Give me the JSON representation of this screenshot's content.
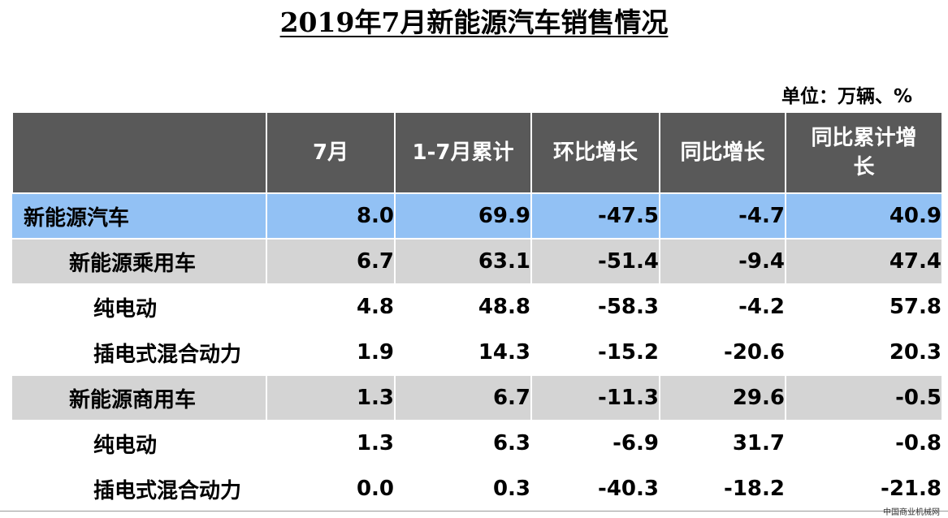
{
  "title": "2019年7月新能源汽车销售情况",
  "unit": "单位：万辆、%",
  "columns": [
    "",
    "7月",
    "1-7月累计",
    "环比增长",
    "同比增长",
    "同比累计增长"
  ],
  "rows": [
    {
      "level": 0,
      "label": "新能源汽车",
      "values": [
        "8.0",
        "69.9",
        "-47.5",
        "-4.7",
        "40.9"
      ]
    },
    {
      "level": 1,
      "label": "新能源乘用车",
      "values": [
        "6.7",
        "63.1",
        "-51.4",
        "-9.4",
        "47.4"
      ]
    },
    {
      "level": 2,
      "label": "纯电动",
      "values": [
        "4.8",
        "48.8",
        "-58.3",
        "-4.2",
        "57.8"
      ]
    },
    {
      "level": 2,
      "label": "插电式混合动力",
      "values": [
        "1.9",
        "14.3",
        "-15.2",
        "-20.6",
        "20.3"
      ]
    },
    {
      "level": 1,
      "label": "新能源商用车",
      "values": [
        "1.3",
        "6.7",
        "-11.3",
        "29.6",
        "-0.5"
      ]
    },
    {
      "level": 2,
      "label": "纯电动",
      "values": [
        "1.3",
        "6.3",
        "-6.9",
        "31.7",
        "-0.8"
      ]
    },
    {
      "level": 2,
      "label": "插电式混合动力",
      "values": [
        "0.0",
        "0.3",
        "-40.3",
        "-18.2",
        "-21.8"
      ]
    }
  ],
  "watermark": "中国商业机械网",
  "colors": {
    "header_bg": "#595959",
    "total_row_bg": "#92c1f4",
    "subtotal_row_bg": "#d4d4d4"
  }
}
